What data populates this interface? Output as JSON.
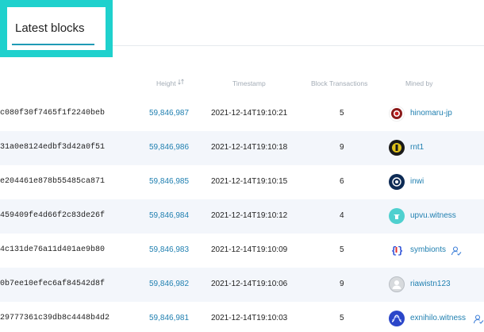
{
  "tab": {
    "label": "Latest blocks"
  },
  "columns": {
    "height": "Height",
    "timestamp": "Timestamp",
    "transactions": "Block Transactions",
    "mined_by": "Mined by"
  },
  "rows": [
    {
      "hash": "c080f30f7465f1f2240beb",
      "height": "59,846,987",
      "timestamp": "2021-12-14T19:10:21",
      "tx": "5",
      "miner": "hinomaru-jp",
      "avatar_icon": "hinomaru-avatar-icon",
      "avatar_color": "#ffffff",
      "verified": false
    },
    {
      "hash": "31a0e8124edbf3d42a0f51",
      "height": "59,846,986",
      "timestamp": "2021-12-14T19:10:18",
      "tx": "9",
      "miner": "rnt1",
      "avatar_icon": "rnt1-avatar-icon",
      "avatar_color": "#1a1a1a",
      "verified": false
    },
    {
      "hash": "e204461e878b55485ca871",
      "height": "59,846,985",
      "timestamp": "2021-12-14T19:10:15",
      "tx": "6",
      "miner": "inwi",
      "avatar_icon": "inwi-avatar-icon",
      "avatar_color": "#0d2b55",
      "verified": false
    },
    {
      "hash": "459409fe4d66f2c83de26f",
      "height": "59,846,984",
      "timestamp": "2021-12-14T19:10:12",
      "tx": "4",
      "miner": "upvu.witness",
      "avatar_icon": "upvu-avatar-icon",
      "avatar_color": "#4fd0cf",
      "verified": false
    },
    {
      "hash": "4c131de76a11d401ae9b80",
      "height": "59,846,983",
      "timestamp": "2021-12-14T19:10:09",
      "tx": "5",
      "miner": "symbionts",
      "avatar_icon": "symbionts-avatar-icon",
      "avatar_color": "#ffffff",
      "verified": true
    },
    {
      "hash": "0b7ee10efec6af84542d8f",
      "height": "59,846,982",
      "timestamp": "2021-12-14T19:10:06",
      "tx": "9",
      "miner": "riawistn123",
      "avatar_icon": "default-user-avatar-icon",
      "avatar_color": "#d7dadd",
      "verified": false
    },
    {
      "hash": "29777361c39db8c4448b4d2",
      "height": "59,846,981",
      "timestamp": "2021-12-14T19:10:03",
      "tx": "5",
      "miner": "exnihilo.witness",
      "avatar_icon": "exnihilo-avatar-icon",
      "avatar_color": "#2b46c9",
      "verified": true
    }
  ]
}
